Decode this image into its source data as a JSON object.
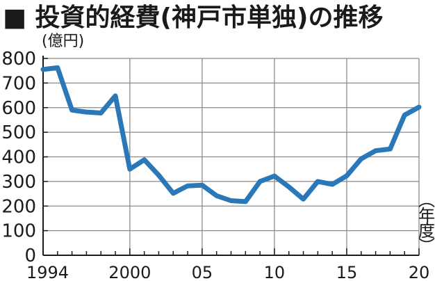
{
  "title": "■ 投資的経費(神戸市単独)の推移",
  "unit_label": "(億円)",
  "x_unit_label": "(年度)",
  "colors": {
    "line": "#2b78b8",
    "grid": "#8a8a8a",
    "axis": "#1a1a1a"
  },
  "chart_data": {
    "type": "line",
    "title": "投資的経費(神戸市単独)の推移",
    "ylabel": "(億円)",
    "xlabel": "(年度)",
    "ylim": [
      0,
      800
    ],
    "y_ticks": [
      0,
      100,
      200,
      300,
      400,
      500,
      600,
      700,
      800
    ],
    "y_tick_labels": [
      "0",
      "100",
      "200",
      "300",
      "400",
      "500",
      "600",
      "700",
      "800"
    ],
    "xlim": [
      1994,
      2020
    ],
    "x_ticks": [
      1994,
      2000,
      2005,
      2010,
      2015,
      2020
    ],
    "x_tick_labels": [
      "1994",
      "2000",
      "05",
      "10",
      "15",
      "20"
    ],
    "grid": true,
    "series": [
      {
        "x": [
          1994,
          1995,
          1996,
          1997,
          1998,
          1999,
          2000,
          2001,
          2002,
          2003,
          2004,
          2005,
          2006,
          2007,
          2008,
          2009,
          2010,
          2011,
          2012,
          2013,
          2014,
          2015,
          2016,
          2017,
          2018,
          2019,
          2020
        ],
        "values": [
          755,
          762,
          590,
          582,
          578,
          648,
          350,
          388,
          325,
          252,
          282,
          285,
          242,
          222,
          218,
          300,
          322,
          278,
          228,
          300,
          288,
          323,
          392,
          425,
          432,
          570,
          602
        ]
      }
    ]
  }
}
